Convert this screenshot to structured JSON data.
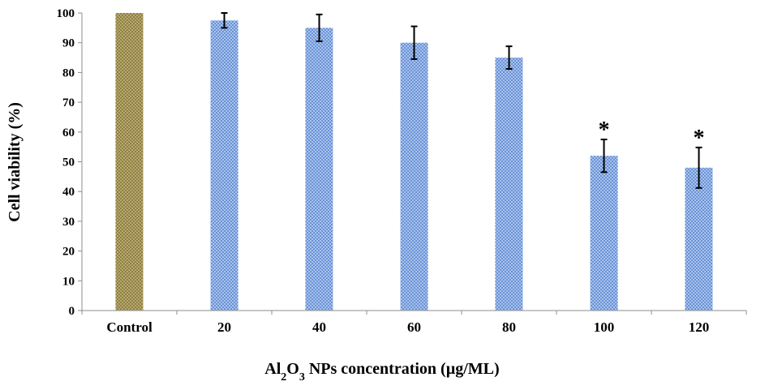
{
  "chart_data": {
    "type": "bar",
    "categories": [
      "Control",
      "20",
      "40",
      "60",
      "80",
      "100",
      "120"
    ],
    "values": [
      100,
      97.5,
      95,
      90,
      85,
      52,
      48
    ],
    "errors": [
      0,
      2.5,
      4.5,
      5.5,
      3.8,
      5.5,
      6.8
    ],
    "significance": [
      "",
      "",
      "",
      "",
      "",
      "*",
      "*"
    ],
    "ylabel": "Cell viability  (%)",
    "xlabel": {
      "prefix": "Al",
      "sub1": "2",
      "mid": "O",
      "sub2": "3",
      "suffix": " NPs concentration (µg/ML)"
    },
    "ylim": [
      0,
      100
    ],
    "yticks": [
      0,
      10,
      20,
      30,
      40,
      50,
      60,
      70,
      80,
      90,
      100
    ],
    "grid": false,
    "legend": "none",
    "colors": {
      "control_fill": "#b8a86a",
      "control_dot": "#6f6330",
      "bar_fill": "#a9c3ee",
      "bar_dot": "#3d6fc2",
      "axis": "#8c8c8c",
      "error": "#000000"
    }
  }
}
